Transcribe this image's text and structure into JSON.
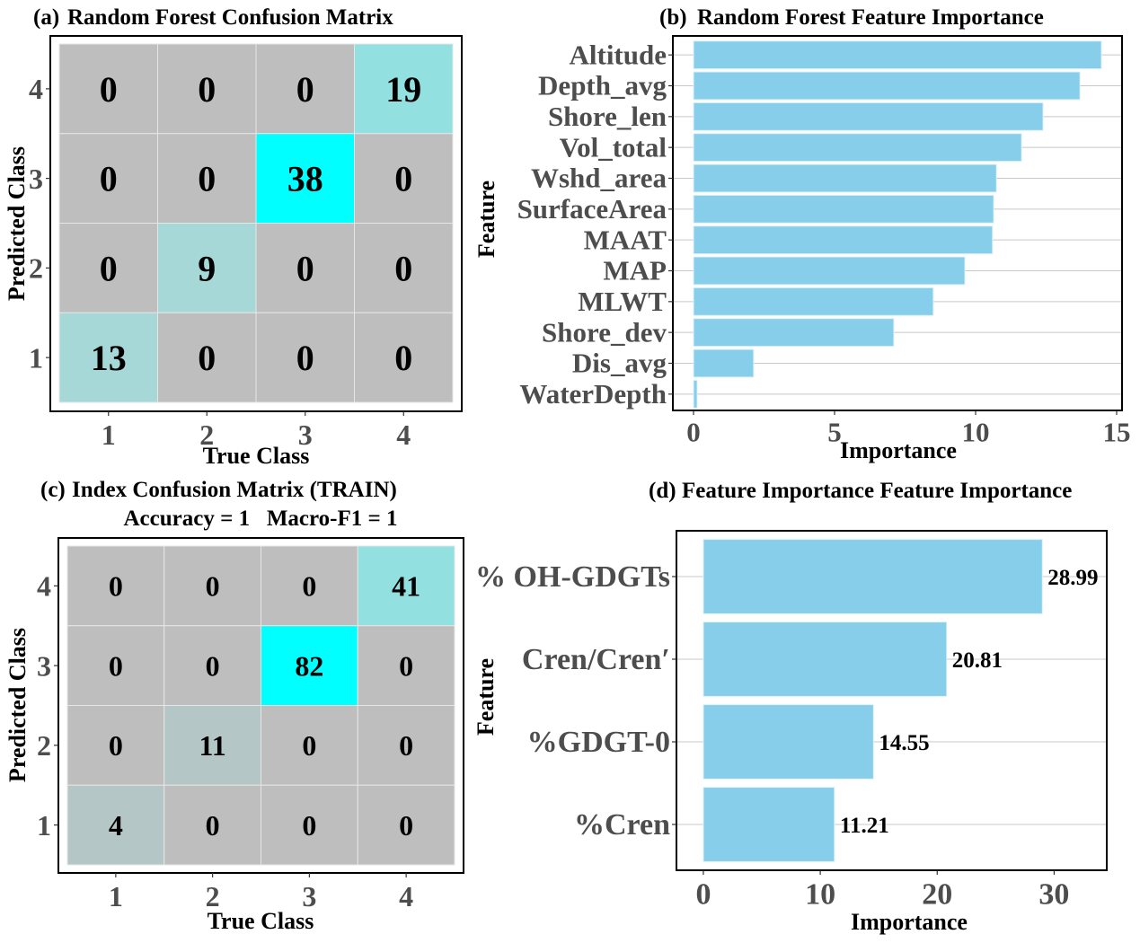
{
  "chart_data": [
    {
      "type": "heatmap",
      "panel": "(a)",
      "title": "Random Forest Confusion Matrix",
      "xlabel": "True  Class",
      "ylabel": "Predicted  Class",
      "x_categories": [
        "1",
        "2",
        "3",
        "4"
      ],
      "y_categories": [
        "1",
        "2",
        "3",
        "4"
      ],
      "matrix_rows_predicted_top_to_bottom": [
        {
          "predicted": "4",
          "values": [
            0,
            0,
            0,
            19
          ]
        },
        {
          "predicted": "3",
          "values": [
            0,
            0,
            38,
            0
          ]
        },
        {
          "predicted": "2",
          "values": [
            0,
            9,
            0,
            0
          ]
        },
        {
          "predicted": "1",
          "values": [
            13,
            0,
            0,
            0
          ]
        }
      ],
      "colors": {
        "zero": "#bebebe",
        "low": "#a6d8d8",
        "mid": "#92e0e0",
        "high": "#00ffff"
      }
    },
    {
      "type": "bar",
      "orientation": "horizontal",
      "panel": "(b)",
      "title": "Random Forest Feature Importance",
      "xlabel": "Importance",
      "ylabel": "Feature",
      "categories": [
        "Altitude",
        "Depth_avg",
        "Shore_len",
        "Vol_total",
        "Wshd_area",
        "SurfaceArea",
        "MAAT",
        "MAP",
        "MLWT",
        "Shore_dev",
        "Dis_avg",
        "WaterDepth"
      ],
      "values": [
        14.46,
        13.7,
        12.39,
        11.63,
        10.74,
        10.64,
        10.6,
        9.62,
        8.5,
        7.1,
        2.13,
        0.13
      ],
      "xlim": [
        0,
        15
      ],
      "xticks": [
        "0",
        "5",
        "10",
        "15"
      ],
      "bar_color": "#87ceeb"
    },
    {
      "type": "heatmap",
      "panel": "(c)",
      "title": "Index Confusion Matrix (TRAIN)",
      "subtitle": "Accuracy = 1   Macro-F1 = 1",
      "xlabel": "True Class",
      "ylabel": "Predicted Class",
      "x_categories": [
        "1",
        "2",
        "3",
        "4"
      ],
      "y_categories": [
        "1",
        "2",
        "3",
        "4"
      ],
      "matrix_rows_predicted_top_to_bottom": [
        {
          "predicted": "4",
          "values": [
            0,
            0,
            0,
            41
          ]
        },
        {
          "predicted": "3",
          "values": [
            0,
            0,
            82,
            0
          ]
        },
        {
          "predicted": "2",
          "values": [
            0,
            11,
            0,
            0
          ]
        },
        {
          "predicted": "1",
          "values": [
            4,
            0,
            0,
            0
          ]
        }
      ],
      "colors": {
        "zero": "#bebebe",
        "low": "#b5c6c6",
        "mid": "#92e0e0",
        "high": "#00ffff"
      }
    },
    {
      "type": "bar",
      "orientation": "horizontal",
      "panel": "(d)",
      "title": "Feature Importance Feature Importance",
      "xlabel": "Importance",
      "ylabel": "Feature",
      "categories": [
        "% OH-GDGTs",
        "Cren/Cren′",
        "%GDGT-0",
        "%Cren"
      ],
      "values": [
        28.99,
        20.81,
        14.55,
        11.21
      ],
      "data_labels": [
        "28.99",
        "20.81",
        "14.55",
        "11.21"
      ],
      "xlim": [
        -2.3,
        34.5
      ],
      "xticks": [
        "0",
        "10",
        "20",
        "30"
      ],
      "bar_color": "#87ceeb"
    }
  ]
}
